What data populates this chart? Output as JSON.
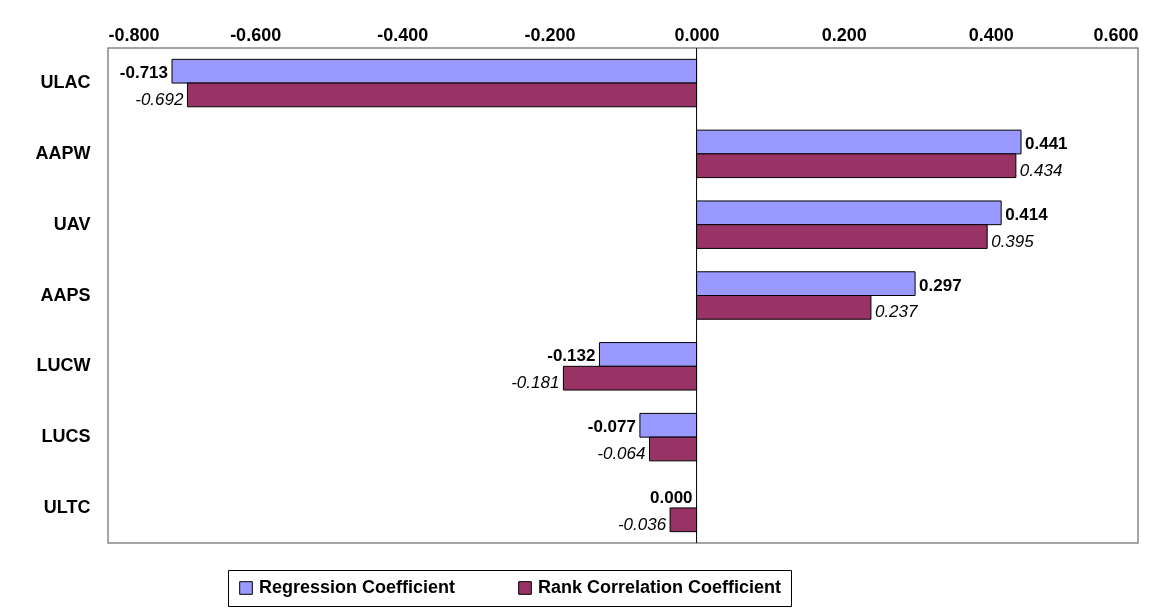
{
  "chart_data": {
    "type": "bar",
    "orientation": "horizontal",
    "categories": [
      "ULAC",
      "AAPW",
      "UAV",
      "AAPS",
      "LUCW",
      "LUCS",
      "ULTC"
    ],
    "series": [
      {
        "name": "Regression Coefficient",
        "color": "#9999ff",
        "values": [
          -0.713,
          0.441,
          0.414,
          0.297,
          -0.132,
          -0.077,
          0.0
        ],
        "value_labels": [
          "-0.713",
          "0.441",
          "0.414",
          "0.297",
          "-0.132",
          "-0.077",
          "0.000"
        ]
      },
      {
        "name": "Rank Correlation Coefficient",
        "color": "#993366",
        "values": [
          -0.692,
          0.434,
          0.395,
          0.237,
          -0.181,
          -0.064,
          -0.036
        ],
        "value_labels": [
          "-0.692",
          "0.434",
          "0.395",
          "0.237",
          "-0.181",
          "-0.064",
          "-0.036"
        ]
      }
    ],
    "xlim": [
      -0.8,
      0.6
    ],
    "xticks": [
      {
        "value": -0.8,
        "label": "-0.800"
      },
      {
        "value": -0.6,
        "label": "-0.600"
      },
      {
        "value": -0.4,
        "label": "-0.400"
      },
      {
        "value": -0.2,
        "label": "-0.200"
      },
      {
        "value": 0,
        "label": "0.000"
      },
      {
        "value": 0.2,
        "label": "0.200"
      },
      {
        "value": 0.4,
        "label": "0.400"
      },
      {
        "value": 0.6,
        "label": "0.600"
      }
    ],
    "ref_lines": [
      {
        "axis": "x",
        "value": 0,
        "color": "#000000"
      }
    ],
    "legend": "bottom",
    "grid": false
  }
}
